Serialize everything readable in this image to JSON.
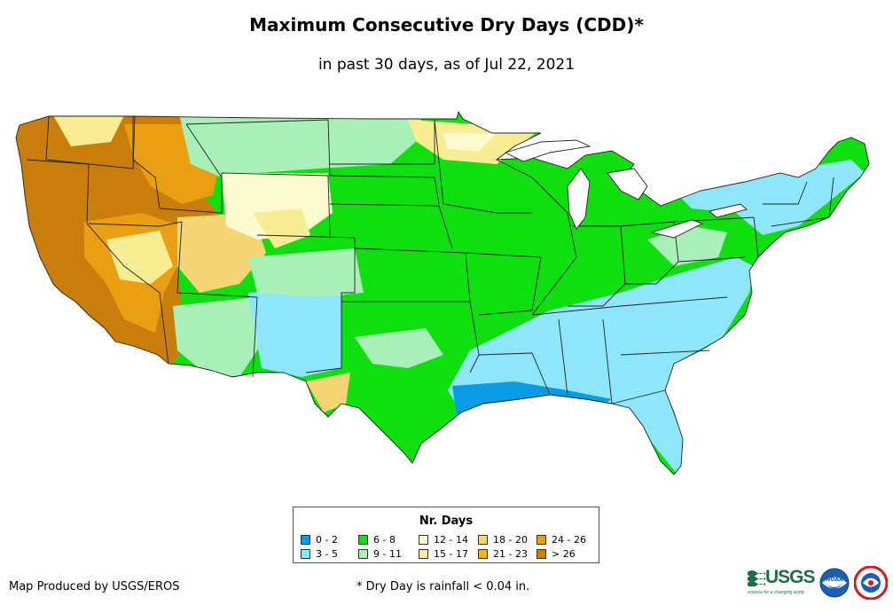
{
  "title": "Maximum Consecutive Dry Days (CDD)*",
  "subtitle": "in past 30 days, as of Jul 22, 2021",
  "legend": {
    "title": "Nr. Days",
    "items": [
      {
        "label": "0 - 2",
        "color": "#0a9be6"
      },
      {
        "label": "3 - 5",
        "color": "#8ee6fa"
      },
      {
        "label": "6 - 8",
        "color": "#0fdf0f"
      },
      {
        "label": "9 - 11",
        "color": "#a8f0b8"
      },
      {
        "label": "12 - 14",
        "color": "#fbfbcf"
      },
      {
        "label": "15 - 17",
        "color": "#f8ed92"
      },
      {
        "label": "18 - 20",
        "color": "#f5d473"
      },
      {
        "label": "21 - 23",
        "color": "#f6b40e"
      },
      {
        "label": "24 - 26",
        "color": "#ea9f12"
      },
      {
        "label": "> 26",
        "color": "#c97e0b"
      }
    ]
  },
  "credit": "Map Produced by USGS/EROS",
  "footnote": "* Dry Day is rainfall < 0.04 in.",
  "logos": {
    "usgs": "USGS",
    "usgs_tagline": "science for a changing world",
    "noaa": "NOAA"
  }
}
